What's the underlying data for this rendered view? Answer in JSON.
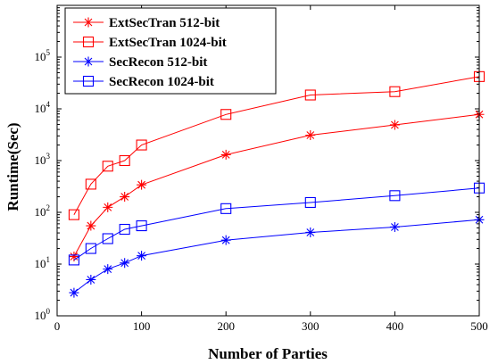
{
  "chart_data": {
    "type": "line",
    "xlabel": "Number of Parties",
    "ylabel": "Runtime(Sec)",
    "x": [
      20,
      40,
      60,
      80,
      100,
      200,
      300,
      400,
      500
    ],
    "xlim": [
      0,
      500
    ],
    "ylim": [
      1,
      1000000
    ],
    "yscale": "log",
    "xticks": [
      0,
      100,
      200,
      300,
      400,
      500
    ],
    "yticks": [
      {
        "base": "10",
        "exp": "0"
      },
      {
        "base": "10",
        "exp": "1"
      },
      {
        "base": "10",
        "exp": "2"
      },
      {
        "base": "10",
        "exp": "3"
      },
      {
        "base": "10",
        "exp": "4"
      },
      {
        "base": "10",
        "exp": "5"
      }
    ],
    "legend_position": "top-left",
    "series": [
      {
        "name": "ExtSecTran 512-bit",
        "color": "#ff0000",
        "marker": "asterisk",
        "values": [
          14,
          55,
          125,
          200,
          340,
          1300,
          3100,
          4900,
          7800
        ]
      },
      {
        "name": "ExtSecTran 1024-bit",
        "color": "#ff0000",
        "marker": "square",
        "values": [
          90,
          350,
          780,
          1000,
          2000,
          7800,
          18500,
          21500,
          42000
        ]
      },
      {
        "name": "SecRecon 512-bit",
        "color": "#0000ff",
        "marker": "asterisk",
        "values": [
          2.8,
          5,
          8,
          10.5,
          14.5,
          29,
          41,
          52,
          72
        ]
      },
      {
        "name": "SecRecon 1024-bit",
        "color": "#0000ff",
        "marker": "square",
        "values": [
          12,
          20,
          31,
          47,
          55,
          118,
          155,
          210,
          295
        ]
      }
    ]
  }
}
